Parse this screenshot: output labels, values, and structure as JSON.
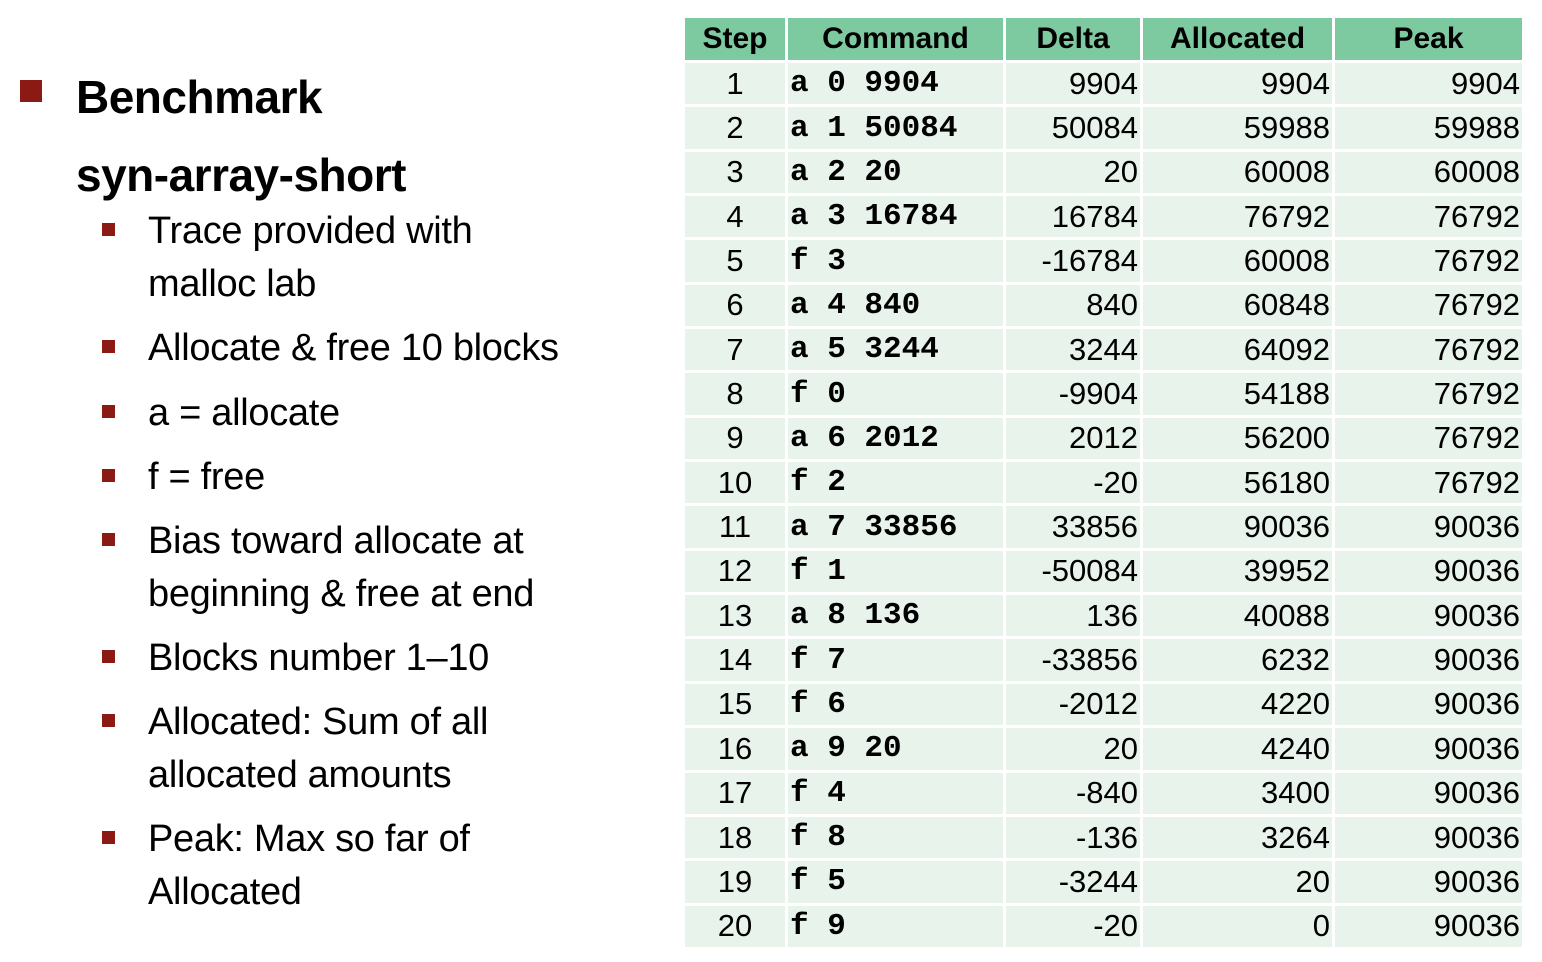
{
  "heading": {
    "line1": "Benchmark",
    "line2": "syn-array-short"
  },
  "bullets": [
    {
      "lines": [
        "Trace provided with",
        "malloc lab"
      ]
    },
    {
      "lines": [
        "Allocate & free 10 blocks"
      ]
    },
    {
      "lines": [
        "a = allocate"
      ]
    },
    {
      "lines": [
        "f = free"
      ]
    },
    {
      "lines": [
        "Bias toward allocate at",
        "beginning & free at end"
      ]
    },
    {
      "lines": [
        "Blocks number 1–10"
      ]
    },
    {
      "lines": [
        "Allocated: Sum of all",
        "allocated amounts"
      ]
    },
    {
      "lines": [
        "Peak: Max so far of",
        "Allocated"
      ]
    }
  ],
  "table": {
    "headers": [
      "Step",
      "Command",
      "Delta",
      "Allocated",
      "Peak"
    ],
    "rows": [
      [
        "1",
        "a 0 9904",
        "9904",
        "9904",
        "9904"
      ],
      [
        "2",
        "a 1 50084",
        "50084",
        "59988",
        "59988"
      ],
      [
        "3",
        "a 2 20",
        "20",
        "60008",
        "60008"
      ],
      [
        "4",
        "a 3 16784",
        "16784",
        "76792",
        "76792"
      ],
      [
        "5",
        "f 3",
        "-16784",
        "60008",
        "76792"
      ],
      [
        "6",
        "a 4 840",
        "840",
        "60848",
        "76792"
      ],
      [
        "7",
        "a 5 3244",
        "3244",
        "64092",
        "76792"
      ],
      [
        "8",
        "f 0",
        "-9904",
        "54188",
        "76792"
      ],
      [
        "9",
        "a 6 2012",
        "2012",
        "56200",
        "76792"
      ],
      [
        "10",
        "f 2",
        "-20",
        "56180",
        "76792"
      ],
      [
        "11",
        "a 7 33856",
        "33856",
        "90036",
        "90036"
      ],
      [
        "12",
        "f 1",
        "-50084",
        "39952",
        "90036"
      ],
      [
        "13",
        "a 8 136",
        "136",
        "40088",
        "90036"
      ],
      [
        "14",
        "f 7",
        "-33856",
        "6232",
        "90036"
      ],
      [
        "15",
        "f 6",
        "-2012",
        "4220",
        "90036"
      ],
      [
        "16",
        "a 9 20",
        "20",
        "4240",
        "90036"
      ],
      [
        "17",
        "f 4",
        "-840",
        "3400",
        "90036"
      ],
      [
        "18",
        "f 8",
        "-136",
        "3264",
        "90036"
      ],
      [
        "19",
        "f 5",
        "-3244",
        "20",
        "90036"
      ],
      [
        "20",
        "f 9",
        "-20",
        "0",
        "90036"
      ]
    ]
  },
  "colors": {
    "bullet": "#8b1a14",
    "header_bg": "#7dc9a0",
    "row_bg": "#e8f3ec"
  }
}
